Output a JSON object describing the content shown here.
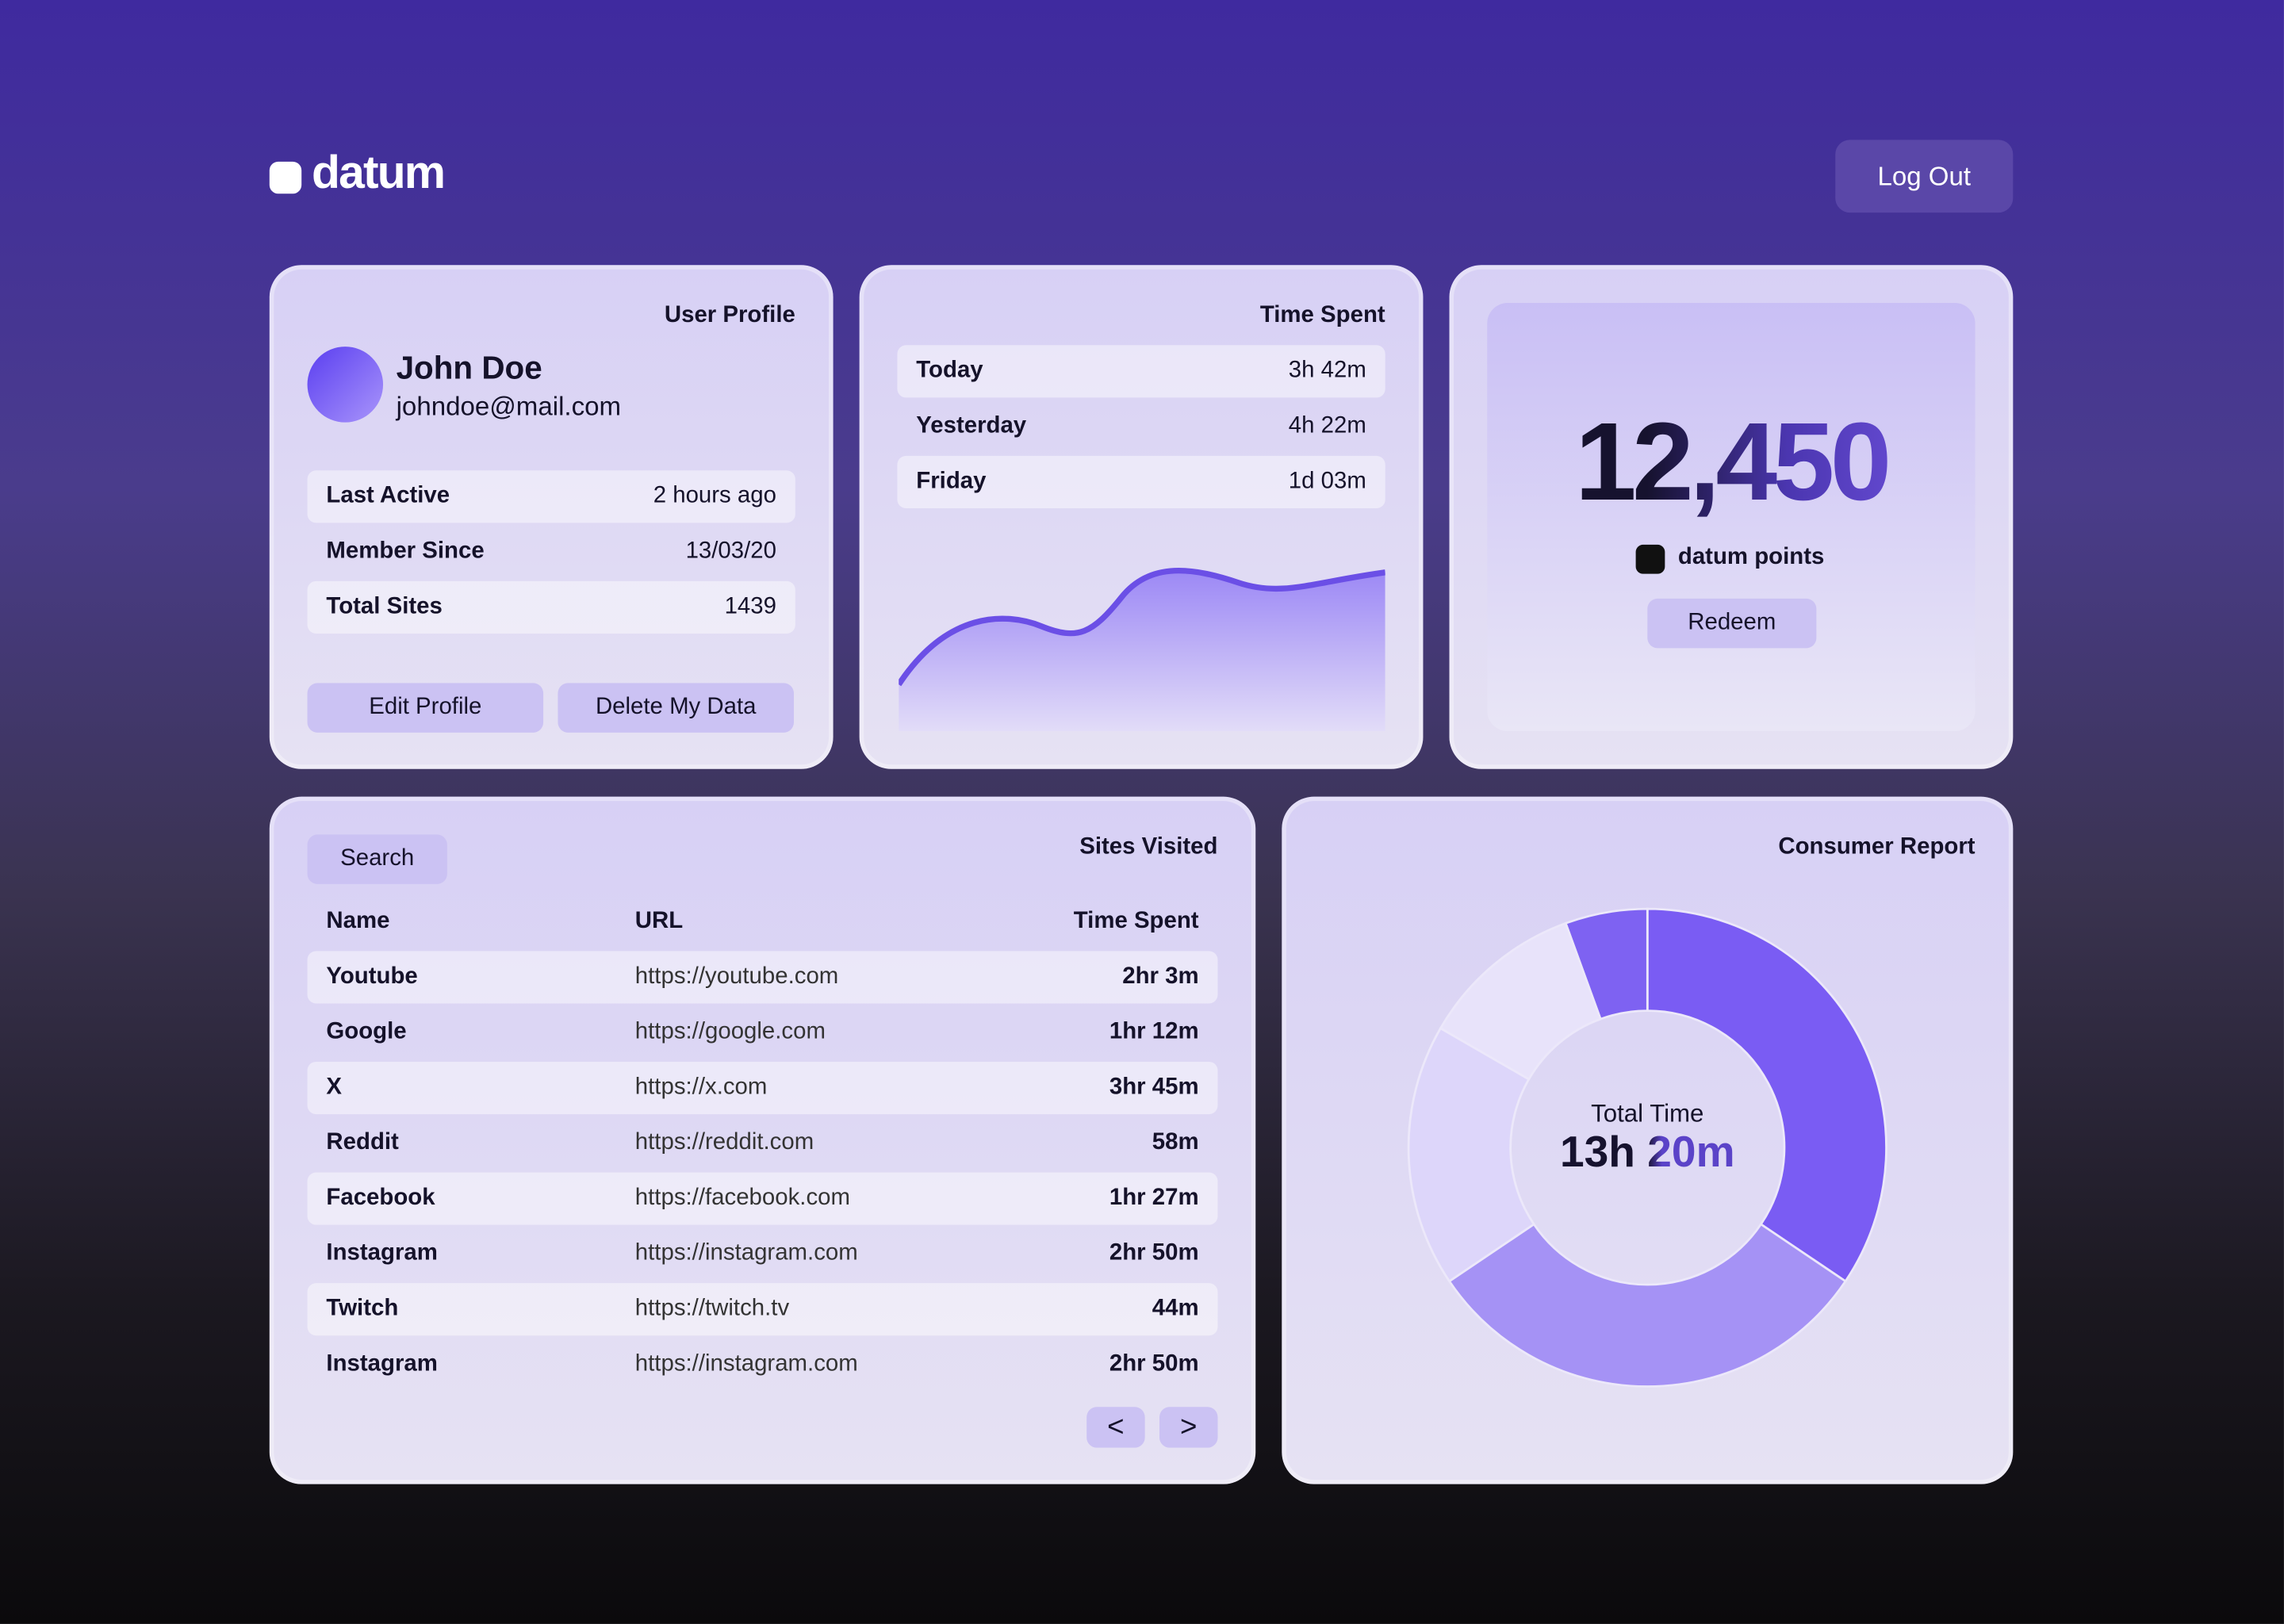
{
  "header": {
    "logo": "datum",
    "logout": "Log Out"
  },
  "profile": {
    "title": "User Profile",
    "name": "John Doe",
    "email": "johndoe@mail.com",
    "rows": [
      [
        "Last Active",
        "2 hours ago"
      ],
      [
        "Member Since",
        "13/03/20"
      ],
      [
        "Total Sites",
        "1439"
      ]
    ],
    "buttons": [
      "Edit Profile",
      "Delete My Data"
    ]
  },
  "time_spent": {
    "title": "Time Spent",
    "rows": [
      [
        "Today",
        "3h 42m"
      ],
      [
        "Yesterday",
        "4h 22m"
      ],
      [
        "Friday",
        "1d 03m"
      ]
    ]
  },
  "points": {
    "value": "12,450",
    "label": "datum points",
    "button": "Redeem"
  },
  "sites": {
    "search": "Search",
    "title": "Sites Visited",
    "columns": [
      "Name",
      "URL",
      "Time Spent"
    ],
    "rows": [
      [
        "Youtube",
        "https://youtube.com",
        "2hr 3m"
      ],
      [
        "Google",
        "https://google.com",
        "1hr 12m"
      ],
      [
        "X",
        "https://x.com",
        "3hr 45m"
      ],
      [
        "Reddit",
        "https://reddit.com",
        "58m"
      ],
      [
        "Facebook",
        "https://facebook.com",
        "1hr 27m"
      ],
      [
        "Instagram",
        "https://instagram.com",
        "2hr 50m"
      ],
      [
        "Twitch",
        "https://twitch.tv",
        "44m"
      ],
      [
        "Instagram",
        "https://instagram.com",
        "2hr 50m"
      ]
    ],
    "pager": [
      "<",
      ">"
    ]
  },
  "report": {
    "title": "Consumer Report",
    "center_label": "Total Time",
    "total": "13h 20m"
  }
}
